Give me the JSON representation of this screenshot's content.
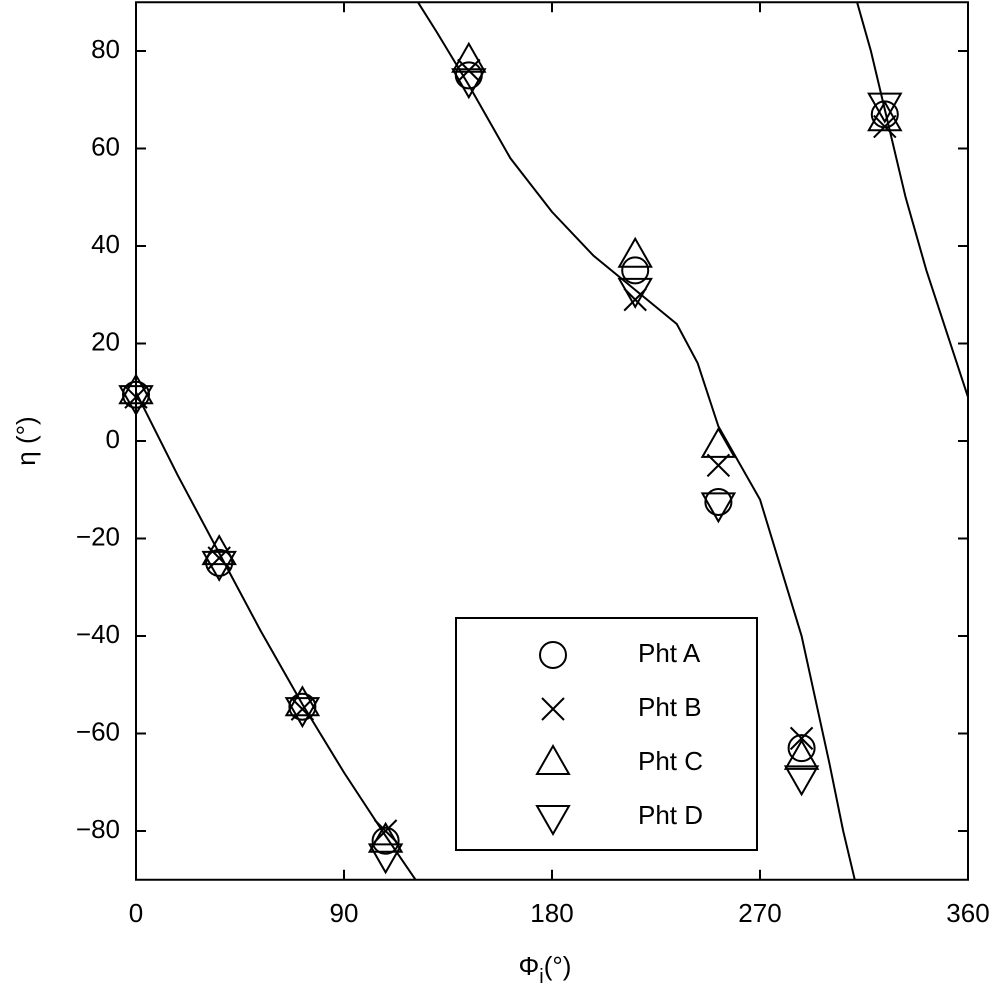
{
  "chart_data": {
    "type": "scatter",
    "x_label": {
      "symbol": "Φ",
      "subscript": "i",
      "unit": "(°)"
    },
    "y_label": "η (°)",
    "xlim": [
      0,
      360
    ],
    "ylim": [
      -90,
      90
    ],
    "xticks": [
      0,
      90,
      180,
      270,
      360
    ],
    "yticks": [
      {
        "value": -80,
        "label": "−80"
      },
      {
        "value": -60,
        "label": "−60"
      },
      {
        "value": -40,
        "label": "−40"
      },
      {
        "value": -20,
        "label": "−20"
      },
      0,
      20,
      40,
      60,
      80
    ],
    "x": [
      0,
      36,
      72,
      108,
      144,
      216,
      252,
      288,
      324
    ],
    "series": [
      {
        "name": "Pht A",
        "marker": "circle",
        "color": "#000000",
        "values": [
          9.5,
          -25,
          -54.5,
          -82,
          75,
          35,
          -12.5,
          -63,
          67
        ]
      },
      {
        "name": "Pht B",
        "marker": "x",
        "color": "#000000",
        "values": [
          9,
          -24,
          -55,
          -80,
          76,
          29,
          -5,
          -61,
          64.5
        ]
      },
      {
        "name": "Pht C",
        "marker": "triangle-up",
        "color": "#000000",
        "values": [
          10,
          -23,
          -54,
          -82,
          78,
          38,
          -1,
          -65,
          66
        ]
      },
      {
        "name": "Pht D",
        "marker": "triangle-down",
        "color": "#000000",
        "values": [
          9,
          -25,
          -55,
          -85,
          74,
          31,
          -13,
          -69,
          69
        ]
      }
    ],
    "curve": {
      "color": "#000000",
      "x": [
        0,
        18,
        36,
        54,
        72,
        90,
        108,
        121,
        121,
        122,
        130,
        144,
        162,
        180,
        198,
        216,
        234,
        243,
        252,
        270,
        288,
        300,
        306,
        311,
        311,
        312,
        318,
        324,
        333,
        342,
        351,
        360
      ],
      "y": [
        10,
        -7,
        -23,
        -39,
        -54,
        -68,
        -81,
        -90,
        null,
        90,
        84,
        73,
        58,
        47,
        38,
        31,
        24,
        16,
        3,
        -12,
        -40,
        -66,
        -80,
        -90,
        null,
        90,
        80,
        68,
        50,
        35,
        22,
        9
      ]
    }
  }
}
